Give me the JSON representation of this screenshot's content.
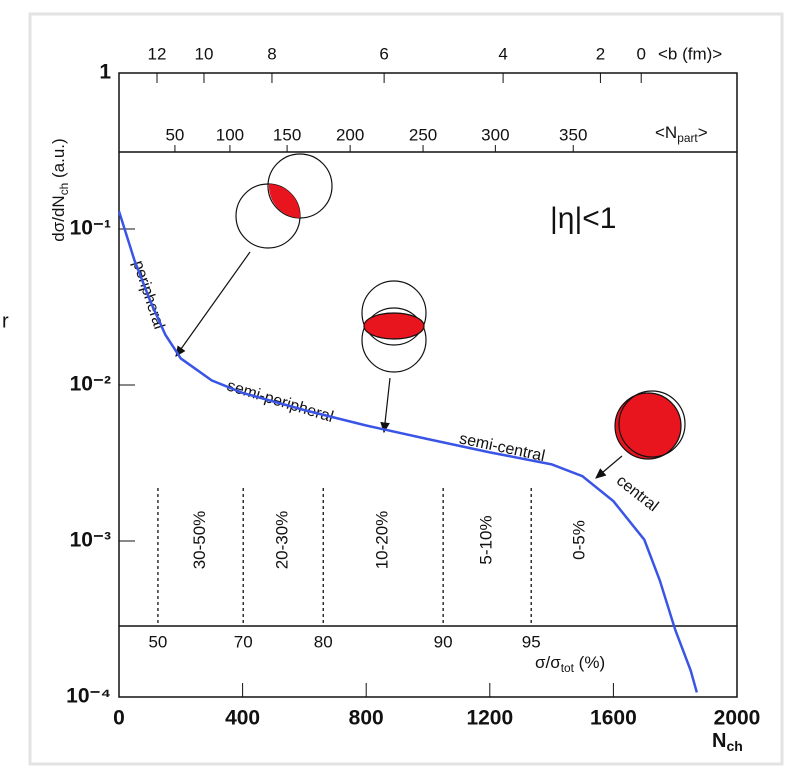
{
  "chart_data": {
    "type": "line",
    "log_y": true,
    "y_label": {
      "main": "dσ/dN",
      "sub": "ch",
      "tail": " (a.u.)"
    },
    "x_label": {
      "main": "N",
      "sub": "ch"
    },
    "xlim": [
      0,
      2000
    ],
    "xticks": [
      0,
      400,
      800,
      1200,
      1600,
      2000
    ],
    "ylim": [
      0.0001,
      1
    ],
    "yticks": [
      {
        "value": 0.0001,
        "label": "10⁻⁴"
      },
      {
        "value": 0.001,
        "label": "10⁻³"
      },
      {
        "value": 0.01,
        "label": "10⁻²"
      },
      {
        "value": 0.1,
        "label": "10⁻¹"
      },
      1
    ],
    "x": [
      0,
      50,
      100,
      150,
      200,
      300,
      400,
      600,
      800,
      1000,
      1200,
      1400,
      1500,
      1600,
      1700,
      1750,
      1800,
      1850,
      1870
    ],
    "series": [
      {
        "color": "#3a55e6",
        "values": [
          0.13,
          0.063,
          0.035,
          0.021,
          0.0148,
          0.0107,
          0.0089,
          0.0069,
          0.0055,
          0.0045,
          0.0037,
          0.0031,
          0.0026,
          0.0018,
          0.00102,
          0.00056,
          0.00027,
          0.000148,
          0.000107
        ]
      }
    ],
    "b_axis": {
      "label": "<b (fm)>",
      "ticks": [
        {
          "value": 12,
          "x": 123
        },
        {
          "value": 10,
          "x": 275
        },
        {
          "value": 8,
          "x": 495
        },
        {
          "value": 6,
          "x": 858
        },
        {
          "value": 4,
          "x": 1243
        },
        {
          "value": 2,
          "x": 1558
        },
        {
          "value": 0,
          "x": 1690
        }
      ]
    },
    "npart_axis": {
      "label": {
        "main": "<N",
        "sub": "part",
        "tail": ">"
      },
      "ticks": [
        {
          "value": 50,
          "x": 181
        },
        {
          "value": 100,
          "x": 359
        },
        {
          "value": 150,
          "x": 544
        },
        {
          "value": 200,
          "x": 748
        },
        {
          "value": 250,
          "x": 984
        },
        {
          "value": 300,
          "x": 1218
        },
        {
          "value": 350,
          "x": 1470
        }
      ]
    },
    "centrality_axis": {
      "label": {
        "main": "σ/σ",
        "sub": "tot",
        "tail": " (%)"
      },
      "ticks": [
        {
          "value": 50,
          "x": 126
        },
        {
          "value": 70,
          "x": 402
        },
        {
          "value": 80,
          "x": 661
        },
        {
          "value": 90,
          "x": 1049
        },
        {
          "value": 95,
          "x": 1334
        }
      ]
    },
    "classes": [
      "30-50%",
      "20-30%",
      "10-20%",
      "5-10%",
      "0-5%"
    ],
    "annotations": {
      "eta": "|η|<1",
      "peripheral": "peripheral",
      "semi_peripheral": "semi-peripheral",
      "semi_central": "semi-central",
      "central": "central"
    },
    "side_text": "r"
  }
}
